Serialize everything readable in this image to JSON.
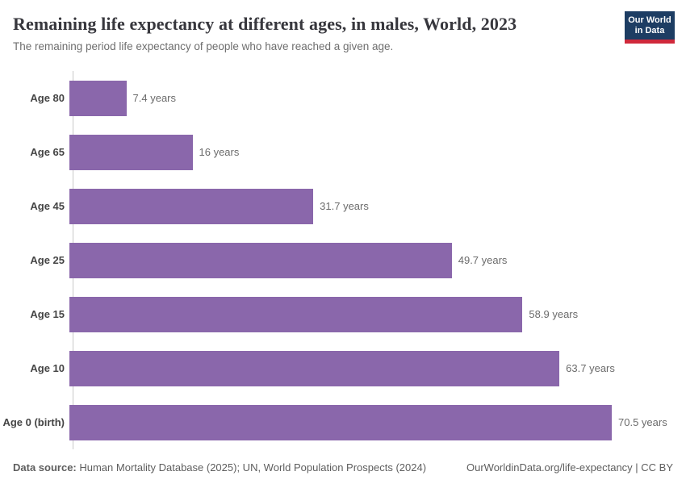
{
  "header": {
    "title": "Remaining life expectancy at different ages, in males, World, 2023",
    "subtitle": "The remaining period life expectancy of people who have reached a given age.",
    "logo": {
      "line1": "Our World",
      "line2": "in Data"
    }
  },
  "chart_data": {
    "type": "bar",
    "orientation": "horizontal",
    "title": "Remaining life expectancy at different ages, in males, World, 2023",
    "categories": [
      "Age 80",
      "Age 65",
      "Age 45",
      "Age 25",
      "Age 15",
      "Age 10",
      "Age 0 (birth)"
    ],
    "values": [
      7.4,
      16,
      31.7,
      49.7,
      58.9,
      63.7,
      70.5
    ],
    "value_labels": [
      "7.4 years",
      "16 years",
      "31.7 years",
      "49.7 years",
      "58.9 years",
      "63.7 years",
      "70.5 years"
    ],
    "unit": "years",
    "xlabel": "",
    "ylabel": "",
    "xlim": [
      0,
      70.5
    ],
    "grid": false,
    "legend": "none",
    "bar_color": "#8a67ab"
  },
  "footer": {
    "source_label": "Data source:",
    "source_text": " Human Mortality Database (2025); UN, World Population Prospects (2024)",
    "link_text": "OurWorldinData.org/life-expectancy | CC BY"
  },
  "colors": {
    "bar": "#8a67ab",
    "brand_navy": "#1d3d63",
    "brand_red": "#d0293b",
    "title_text": "#37373d",
    "muted_text": "#6e6e6e",
    "axis_line": "#c9c9c9"
  }
}
